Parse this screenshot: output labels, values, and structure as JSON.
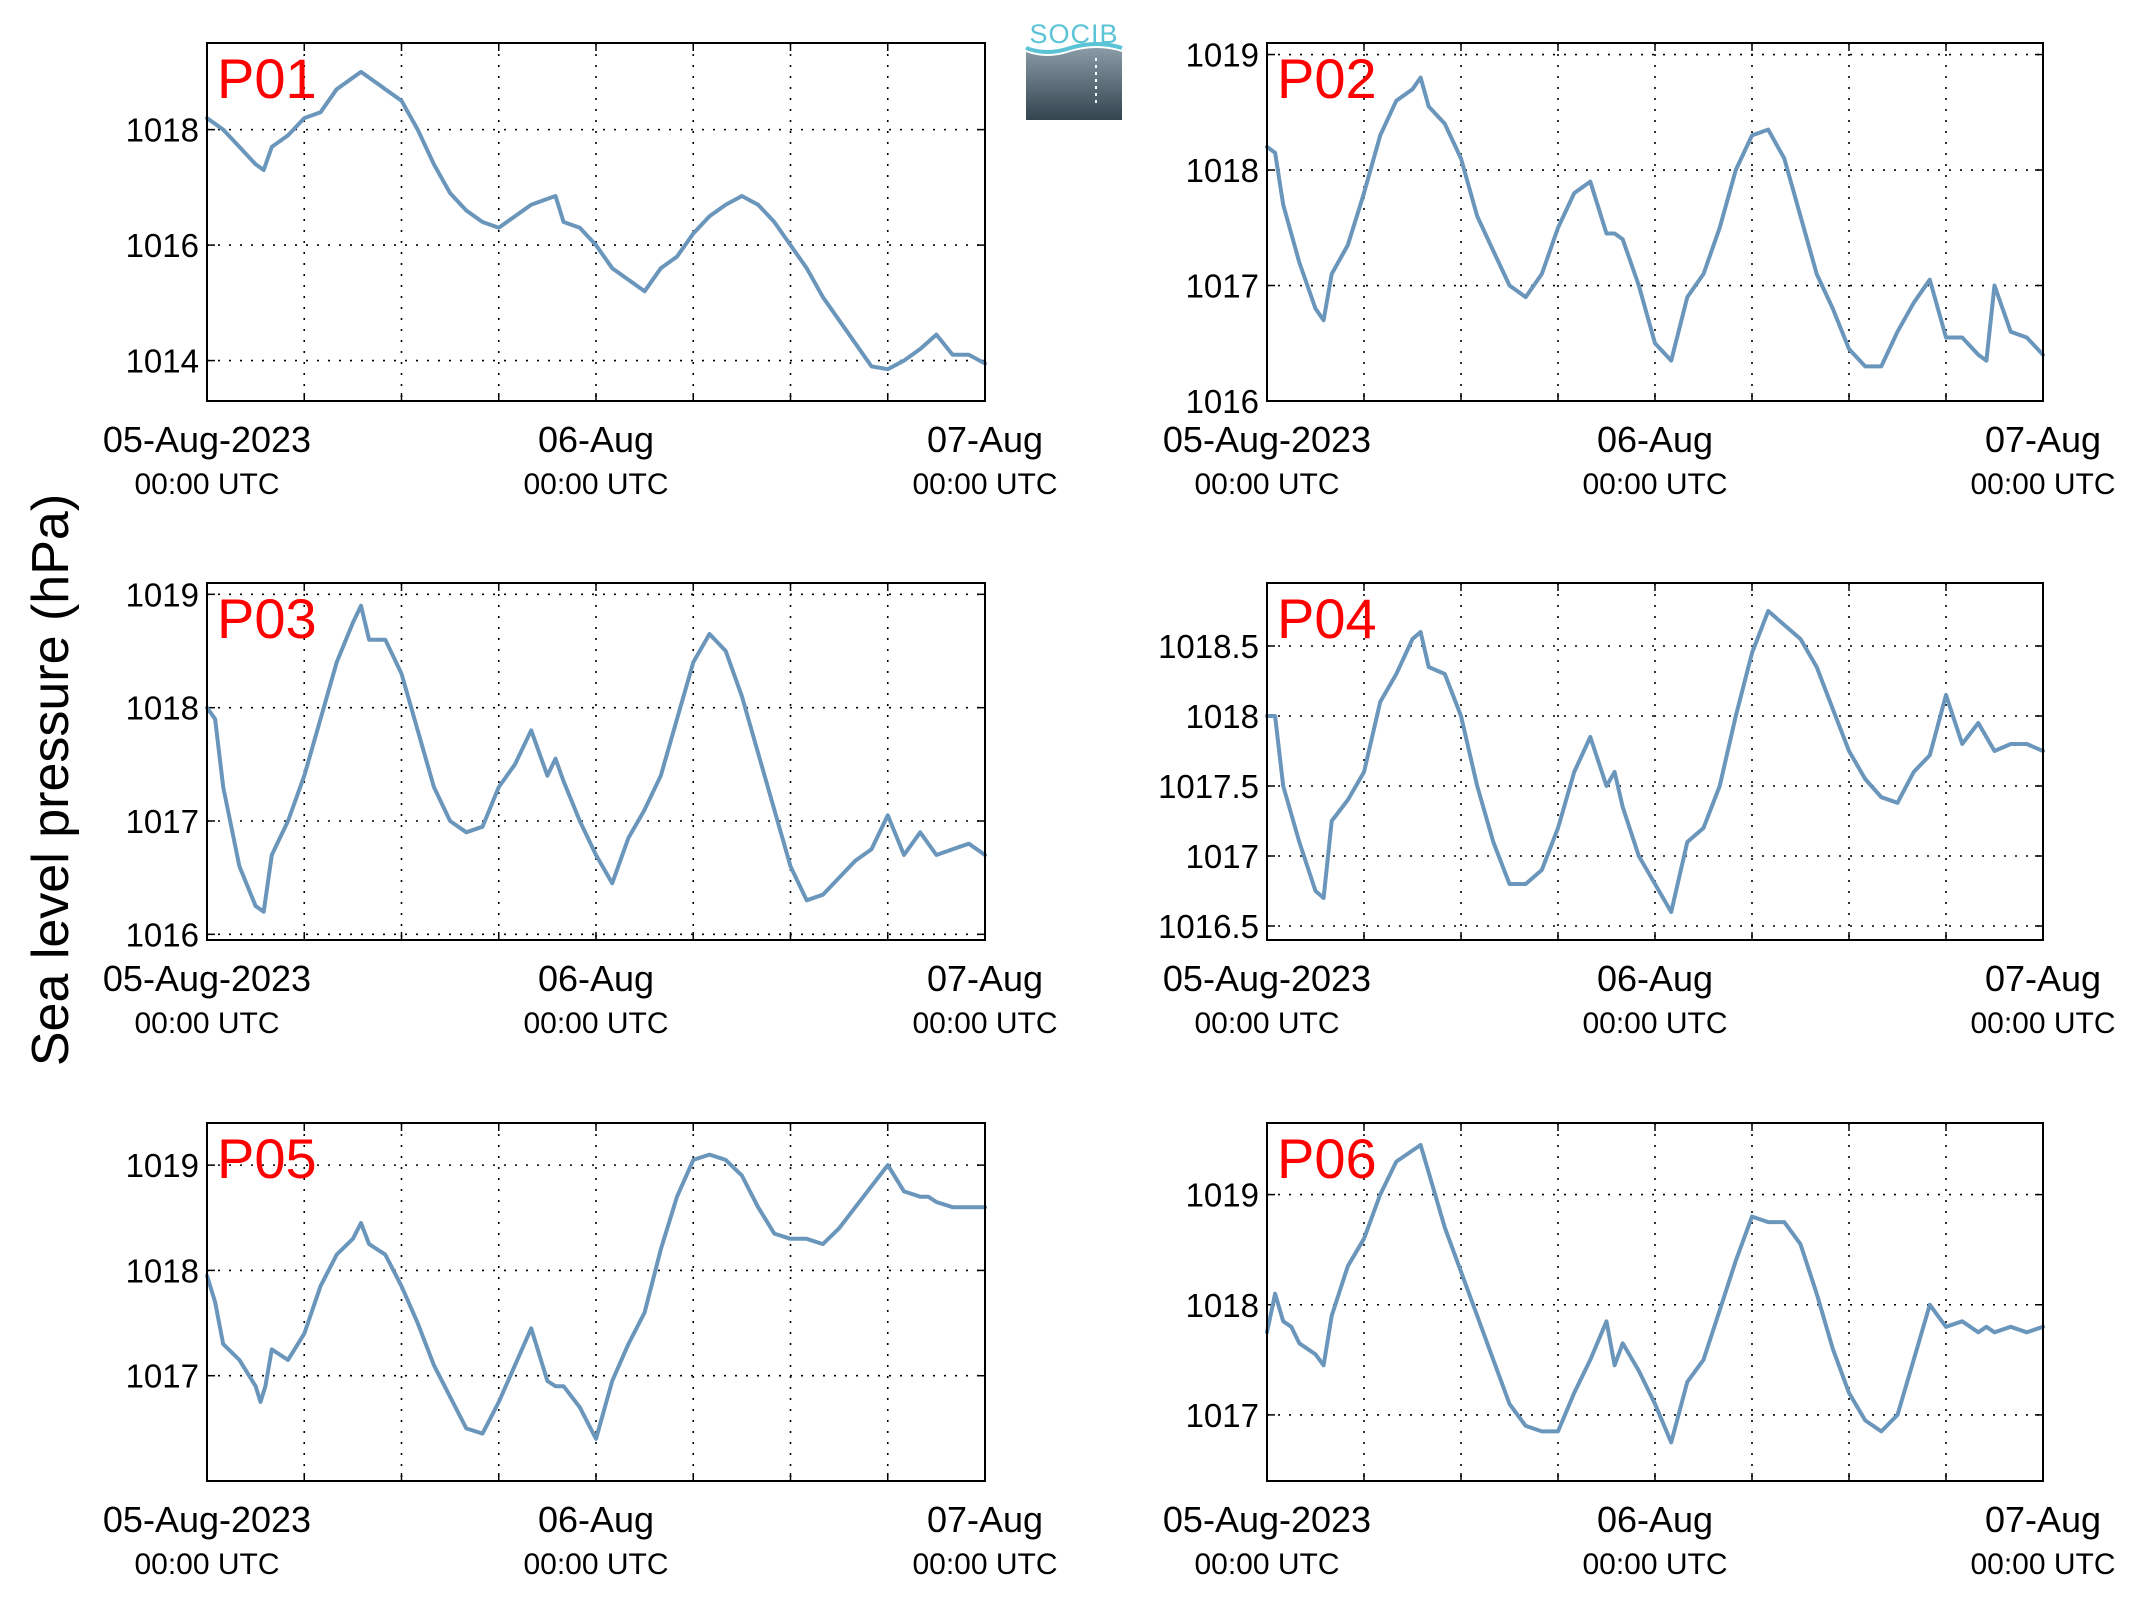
{
  "figure": {
    "ylabel": "Sea level pressure (hPa)",
    "logo_text": "SOCIB",
    "line_color": "#6b96bb",
    "title_color": "#ff0000"
  },
  "chart_data": [
    {
      "type": "line",
      "title": "P01",
      "x_ticks": [
        {
          "date": "05-Aug-2023",
          "time": "00:00 UTC"
        },
        {
          "date": "06-Aug",
          "time": "00:00 UTC"
        },
        {
          "date": "07-Aug",
          "time": "00:00 UTC"
        }
      ],
      "xlim_hours": [
        0,
        48
      ],
      "ylim": [
        1013.3,
        1019.5
      ],
      "yticks": [
        1014,
        1016,
        1018
      ],
      "ytick_labels": [
        "1014",
        "1016",
        "1018"
      ],
      "grid": true,
      "series": [
        {
          "x": [
            0,
            1,
            2,
            3,
            3.5,
            4,
            5,
            6,
            7,
            8,
            9,
            9.5,
            10,
            11,
            12,
            13,
            14,
            15,
            16,
            17,
            18,
            19,
            20,
            21,
            21.5,
            22,
            23,
            24,
            25,
            26,
            27,
            28,
            29,
            30,
            31,
            32,
            33,
            34,
            35,
            36,
            37,
            38,
            39,
            40,
            41,
            42,
            43,
            44,
            45,
            46,
            47,
            48
          ],
          "y": [
            1018.2,
            1018.0,
            1017.7,
            1017.4,
            1017.3,
            1017.7,
            1017.9,
            1018.2,
            1018.3,
            1018.7,
            1018.9,
            1019.0,
            1018.9,
            1018.7,
            1018.5,
            1018.0,
            1017.4,
            1016.9,
            1016.6,
            1016.4,
            1016.3,
            1016.5,
            1016.7,
            1016.8,
            1016.85,
            1016.4,
            1016.3,
            1016.0,
            1015.6,
            1015.4,
            1015.2,
            1015.6,
            1015.8,
            1016.2,
            1016.5,
            1016.7,
            1016.85,
            1016.7,
            1016.4,
            1016.0,
            1015.6,
            1015.1,
            1014.7,
            1014.3,
            1013.9,
            1013.85,
            1014.0,
            1014.2,
            1014.45,
            1014.1,
            1014.1,
            1013.95
          ]
        }
      ]
    },
    {
      "type": "line",
      "title": "P02",
      "x_ticks": [
        {
          "date": "05-Aug-2023",
          "time": "00:00 UTC"
        },
        {
          "date": "06-Aug",
          "time": "00:00 UTC"
        },
        {
          "date": "07-Aug",
          "time": "00:00 UTC"
        }
      ],
      "xlim_hours": [
        0,
        48
      ],
      "ylim": [
        1016.0,
        1019.1
      ],
      "yticks": [
        1016,
        1017,
        1018,
        1019
      ],
      "ytick_labels": [
        "1016",
        "1017",
        "1018",
        "1019"
      ],
      "grid": true,
      "series": [
        {
          "x": [
            0,
            0.5,
            1,
            2,
            3,
            3.5,
            4,
            5,
            6,
            7,
            8,
            9,
            9.5,
            10,
            11,
            12,
            13,
            14,
            15,
            16,
            17,
            18,
            19,
            20,
            21,
            21.5,
            22,
            23,
            24,
            25,
            26,
            26.5,
            27,
            28,
            29,
            30,
            31,
            32,
            33,
            34,
            35,
            36,
            37,
            38,
            39,
            40,
            41,
            42,
            43,
            44,
            44.5,
            45,
            46,
            47,
            48
          ],
          "y": [
            1018.2,
            1018.15,
            1017.7,
            1017.2,
            1016.8,
            1016.7,
            1017.1,
            1017.35,
            1017.8,
            1018.3,
            1018.6,
            1018.7,
            1018.8,
            1018.55,
            1018.4,
            1018.1,
            1017.6,
            1017.3,
            1017.0,
            1016.9,
            1017.1,
            1017.5,
            1017.8,
            1017.9,
            1017.45,
            1017.45,
            1017.4,
            1017.0,
            1016.5,
            1016.35,
            1016.9,
            1017.0,
            1017.1,
            1017.5,
            1018.0,
            1018.3,
            1018.35,
            1018.1,
            1017.6,
            1017.1,
            1016.8,
            1016.45,
            1016.3,
            1016.3,
            1016.6,
            1016.85,
            1017.05,
            1016.55,
            1016.55,
            1016.4,
            1016.35,
            1017.0,
            1016.6,
            1016.55,
            1016.4
          ]
        }
      ]
    },
    {
      "type": "line",
      "title": "P03",
      "x_ticks": [
        {
          "date": "05-Aug-2023",
          "time": "00:00 UTC"
        },
        {
          "date": "06-Aug",
          "time": "00:00 UTC"
        },
        {
          "date": "07-Aug",
          "time": "00:00 UTC"
        }
      ],
      "xlim_hours": [
        0,
        48
      ],
      "ylim": [
        1015.95,
        1019.1
      ],
      "yticks": [
        1016,
        1017,
        1018,
        1019
      ],
      "ytick_labels": [
        "1016",
        "1017",
        "1018",
        "1019"
      ],
      "grid": true,
      "series": [
        {
          "x": [
            0,
            0.5,
            1,
            2,
            3,
            3.5,
            4,
            5,
            6,
            7,
            8,
            9,
            9.5,
            10,
            11,
            12,
            13,
            14,
            15,
            16,
            17,
            18,
            19,
            20,
            21,
            21.5,
            22,
            23,
            24,
            25,
            26,
            27,
            28,
            29,
            30,
            31,
            32,
            33,
            34,
            35,
            36,
            37,
            38,
            39,
            40,
            41,
            42,
            43,
            44,
            45,
            46,
            47,
            48
          ],
          "y": [
            1018.0,
            1017.9,
            1017.3,
            1016.6,
            1016.25,
            1016.2,
            1016.7,
            1017.0,
            1017.4,
            1017.9,
            1018.4,
            1018.75,
            1018.9,
            1018.6,
            1018.6,
            1018.3,
            1017.8,
            1017.3,
            1017.0,
            1016.9,
            1016.95,
            1017.3,
            1017.5,
            1017.8,
            1017.4,
            1017.55,
            1017.35,
            1017.0,
            1016.7,
            1016.45,
            1016.85,
            1017.1,
            1017.4,
            1017.9,
            1018.4,
            1018.65,
            1018.5,
            1018.1,
            1017.6,
            1017.1,
            1016.6,
            1016.3,
            1016.35,
            1016.5,
            1016.65,
            1016.75,
            1017.05,
            1016.7,
            1016.9,
            1016.7,
            1016.75,
            1016.8,
            1016.7
          ]
        }
      ]
    },
    {
      "type": "line",
      "title": "P04",
      "x_ticks": [
        {
          "date": "05-Aug-2023",
          "time": "00:00 UTC"
        },
        {
          "date": "06-Aug",
          "time": "00:00 UTC"
        },
        {
          "date": "07-Aug",
          "time": "00:00 UTC"
        }
      ],
      "xlim_hours": [
        0,
        48
      ],
      "ylim": [
        1016.4,
        1018.95
      ],
      "yticks": [
        1016.5,
        1017,
        1017.5,
        1018,
        1018.5
      ],
      "ytick_labels": [
        "1016.5",
        "1017",
        "1017.5",
        "1018",
        "1018.5"
      ],
      "grid": true,
      "series": [
        {
          "x": [
            0,
            0.5,
            1,
            2,
            3,
            3.5,
            4,
            5,
            6,
            7,
            8,
            9,
            9.5,
            10,
            11,
            12,
            13,
            14,
            15,
            16,
            17,
            18,
            19,
            20,
            21,
            21.5,
            22,
            23,
            24,
            25,
            26,
            27,
            28,
            29,
            30,
            31,
            32,
            33,
            34,
            35,
            36,
            37,
            38,
            39,
            40,
            41,
            42,
            43,
            44,
            45,
            46,
            47,
            48
          ],
          "y": [
            1018.0,
            1018.0,
            1017.5,
            1017.1,
            1016.75,
            1016.7,
            1017.25,
            1017.4,
            1017.6,
            1018.1,
            1018.3,
            1018.55,
            1018.6,
            1018.35,
            1018.3,
            1018.0,
            1017.5,
            1017.1,
            1016.8,
            1016.8,
            1016.9,
            1017.2,
            1017.6,
            1017.85,
            1017.5,
            1017.6,
            1017.35,
            1017.0,
            1016.8,
            1016.6,
            1017.1,
            1017.2,
            1017.5,
            1018.0,
            1018.45,
            1018.75,
            1018.65,
            1018.55,
            1018.35,
            1018.05,
            1017.75,
            1017.55,
            1017.42,
            1017.38,
            1017.6,
            1017.72,
            1018.15,
            1017.8,
            1017.95,
            1017.75,
            1017.8,
            1017.8,
            1017.75
          ]
        }
      ]
    },
    {
      "type": "line",
      "title": "P05",
      "x_ticks": [
        {
          "date": "05-Aug-2023",
          "time": "00:00 UTC"
        },
        {
          "date": "06-Aug",
          "time": "00:00 UTC"
        },
        {
          "date": "07-Aug",
          "time": "00:00 UTC"
        }
      ],
      "xlim_hours": [
        0,
        48
      ],
      "ylim": [
        1016.0,
        1019.4
      ],
      "yticks": [
        1017,
        1018,
        1019
      ],
      "ytick_labels": [
        "1017",
        "1018",
        "1019"
      ],
      "grid": true,
      "series": [
        {
          "x": [
            0,
            0.5,
            1,
            2,
            3,
            3.3,
            3.6,
            4,
            5,
            6,
            7,
            8,
            9,
            9.5,
            10,
            11,
            12,
            13,
            14,
            15,
            16,
            17,
            18,
            19,
            20,
            21,
            21.5,
            22,
            23,
            24,
            25,
            26,
            27,
            28,
            29,
            30,
            31,
            32,
            33,
            34,
            35,
            36,
            37,
            38,
            39,
            40,
            41,
            42,
            43,
            44,
            44.5,
            45,
            46,
            47,
            48
          ],
          "y": [
            1017.95,
            1017.7,
            1017.3,
            1017.15,
            1016.9,
            1016.75,
            1016.9,
            1017.25,
            1017.15,
            1017.4,
            1017.85,
            1018.15,
            1018.3,
            1018.45,
            1018.25,
            1018.15,
            1017.85,
            1017.5,
            1017.1,
            1016.8,
            1016.5,
            1016.45,
            1016.75,
            1017.1,
            1017.45,
            1016.95,
            1016.9,
            1016.9,
            1016.7,
            1016.4,
            1016.95,
            1017.3,
            1017.6,
            1018.2,
            1018.7,
            1019.05,
            1019.1,
            1019.05,
            1018.9,
            1018.6,
            1018.35,
            1018.3,
            1018.3,
            1018.25,
            1018.4,
            1018.6,
            1018.8,
            1019.0,
            1018.75,
            1018.7,
            1018.7,
            1018.65,
            1018.6,
            1018.6,
            1018.6
          ]
        }
      ]
    },
    {
      "type": "line",
      "title": "P06",
      "x_ticks": [
        {
          "date": "05-Aug-2023",
          "time": "00:00 UTC"
        },
        {
          "date": "06-Aug",
          "time": "00:00 UTC"
        },
        {
          "date": "07-Aug",
          "time": "00:00 UTC"
        }
      ],
      "xlim_hours": [
        0,
        48
      ],
      "ylim": [
        1016.4,
        1019.65
      ],
      "yticks": [
        1017,
        1018,
        1019
      ],
      "ytick_labels": [
        "1017",
        "1018",
        "1019"
      ],
      "grid": true,
      "series": [
        {
          "x": [
            0,
            0.5,
            1,
            1.5,
            2,
            3,
            3.5,
            4,
            5,
            6,
            7,
            8,
            9,
            9.5,
            10,
            11,
            12,
            13,
            14,
            15,
            16,
            17,
            18,
            19,
            20,
            21,
            21.5,
            22,
            23,
            24,
            25,
            26,
            27,
            28,
            29,
            30,
            31,
            32,
            33,
            34,
            35,
            36,
            37,
            38,
            39,
            40,
            41,
            42,
            43,
            44,
            44.5,
            45,
            46,
            47,
            48
          ],
          "y": [
            1017.75,
            1018.1,
            1017.85,
            1017.8,
            1017.65,
            1017.55,
            1017.45,
            1017.9,
            1018.35,
            1018.6,
            1019.0,
            1019.3,
            1019.4,
            1019.45,
            1019.2,
            1018.7,
            1018.3,
            1017.9,
            1017.5,
            1017.1,
            1016.9,
            1016.85,
            1016.85,
            1017.2,
            1017.5,
            1017.85,
            1017.45,
            1017.65,
            1017.4,
            1017.1,
            1016.75,
            1017.3,
            1017.5,
            1017.95,
            1018.4,
            1018.8,
            1018.75,
            1018.75,
            1018.55,
            1018.1,
            1017.6,
            1017.2,
            1016.95,
            1016.85,
            1017.0,
            1017.5,
            1018.0,
            1017.8,
            1017.85,
            1017.75,
            1017.8,
            1017.75,
            1017.8,
            1017.75,
            1017.8
          ]
        }
      ]
    }
  ]
}
